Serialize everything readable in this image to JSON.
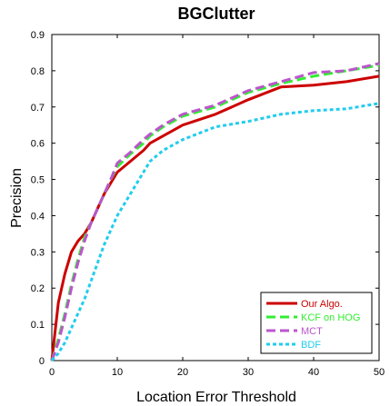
{
  "chart_data": {
    "type": "line",
    "title": "BGClutter",
    "xlabel": "Location Error Threshold",
    "ylabel": "Precision",
    "xlim": [
      0,
      50
    ],
    "ylim": [
      0,
      0.9
    ],
    "xticks": [
      0,
      10,
      20,
      30,
      40,
      50
    ],
    "yticks": [
      0,
      0.1,
      0.2,
      0.3,
      0.4,
      0.5,
      0.6,
      0.7,
      0.8,
      0.9
    ],
    "grid": false,
    "legend_position": "bottom-right",
    "series": [
      {
        "name": "Our Algo.",
        "color": "#cc0000",
        "style": "solid",
        "x": [
          0,
          1,
          2,
          3,
          4,
          5,
          6,
          7,
          8,
          9,
          10,
          12,
          14,
          15,
          17,
          20,
          25,
          30,
          35,
          40,
          45,
          50
        ],
        "y": [
          0.0,
          0.16,
          0.24,
          0.3,
          0.33,
          0.35,
          0.38,
          0.42,
          0.46,
          0.49,
          0.52,
          0.55,
          0.58,
          0.6,
          0.62,
          0.65,
          0.68,
          0.72,
          0.755,
          0.76,
          0.77,
          0.785
        ]
      },
      {
        "name": "KCF on HOG",
        "color": "#33ee33",
        "style": "dashed",
        "x": [
          0,
          1,
          2,
          3,
          4,
          5,
          6,
          7,
          8,
          9,
          10,
          12,
          14,
          15,
          17,
          20,
          25,
          30,
          35,
          40,
          45,
          50
        ],
        "y": [
          0.0,
          0.06,
          0.13,
          0.21,
          0.28,
          0.34,
          0.38,
          0.42,
          0.46,
          0.5,
          0.535,
          0.57,
          0.6,
          0.62,
          0.645,
          0.675,
          0.7,
          0.74,
          0.765,
          0.785,
          0.8,
          0.815
        ]
      },
      {
        "name": "MCT",
        "color": "#bb55cc",
        "style": "dashed",
        "x": [
          0,
          1,
          2,
          3,
          4,
          5,
          6,
          7,
          8,
          9,
          10,
          12,
          14,
          15,
          17,
          20,
          25,
          30,
          35,
          40,
          45,
          50
        ],
        "y": [
          0.0,
          0.05,
          0.12,
          0.2,
          0.27,
          0.33,
          0.38,
          0.42,
          0.46,
          0.5,
          0.545,
          0.575,
          0.61,
          0.625,
          0.65,
          0.68,
          0.705,
          0.745,
          0.77,
          0.795,
          0.8,
          0.82
        ]
      },
      {
        "name": "BDF",
        "color": "#22ccee",
        "style": "dotted",
        "x": [
          0,
          1,
          2,
          3,
          4,
          5,
          6,
          7,
          8,
          9,
          10,
          12,
          14,
          15,
          17,
          20,
          25,
          30,
          35,
          40,
          45,
          50
        ],
        "y": [
          0.0,
          0.02,
          0.05,
          0.09,
          0.13,
          0.17,
          0.22,
          0.27,
          0.32,
          0.36,
          0.4,
          0.46,
          0.52,
          0.55,
          0.58,
          0.61,
          0.645,
          0.66,
          0.68,
          0.69,
          0.695,
          0.71
        ]
      }
    ]
  }
}
